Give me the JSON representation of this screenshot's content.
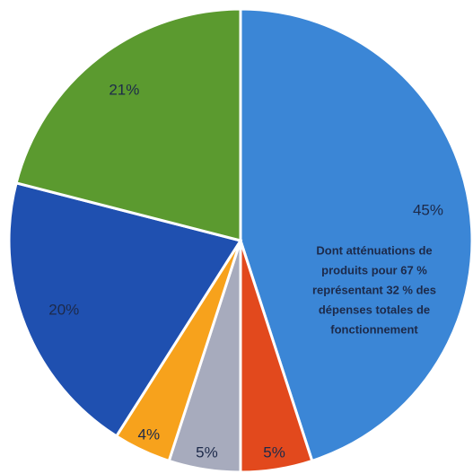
{
  "chart_data": {
    "type": "pie",
    "categories": [
      null,
      null,
      null,
      null,
      null,
      null
    ],
    "values": [
      45,
      5,
      5,
      4,
      20,
      21
    ],
    "value_labels": [
      "45%",
      "5%",
      "5%",
      "4%",
      "20%",
      "21%"
    ],
    "colors": [
      "#3b86d6",
      "#e2491d",
      "#a7abbd",
      "#f7a21c",
      "#1f50b0",
      "#5b9a2f"
    ],
    "annotation": [
      "Dont atténuations de",
      "produits pour 67 %",
      "représentant 32 % des",
      "dépenses totales de",
      "fonctionnement"
    ]
  }
}
